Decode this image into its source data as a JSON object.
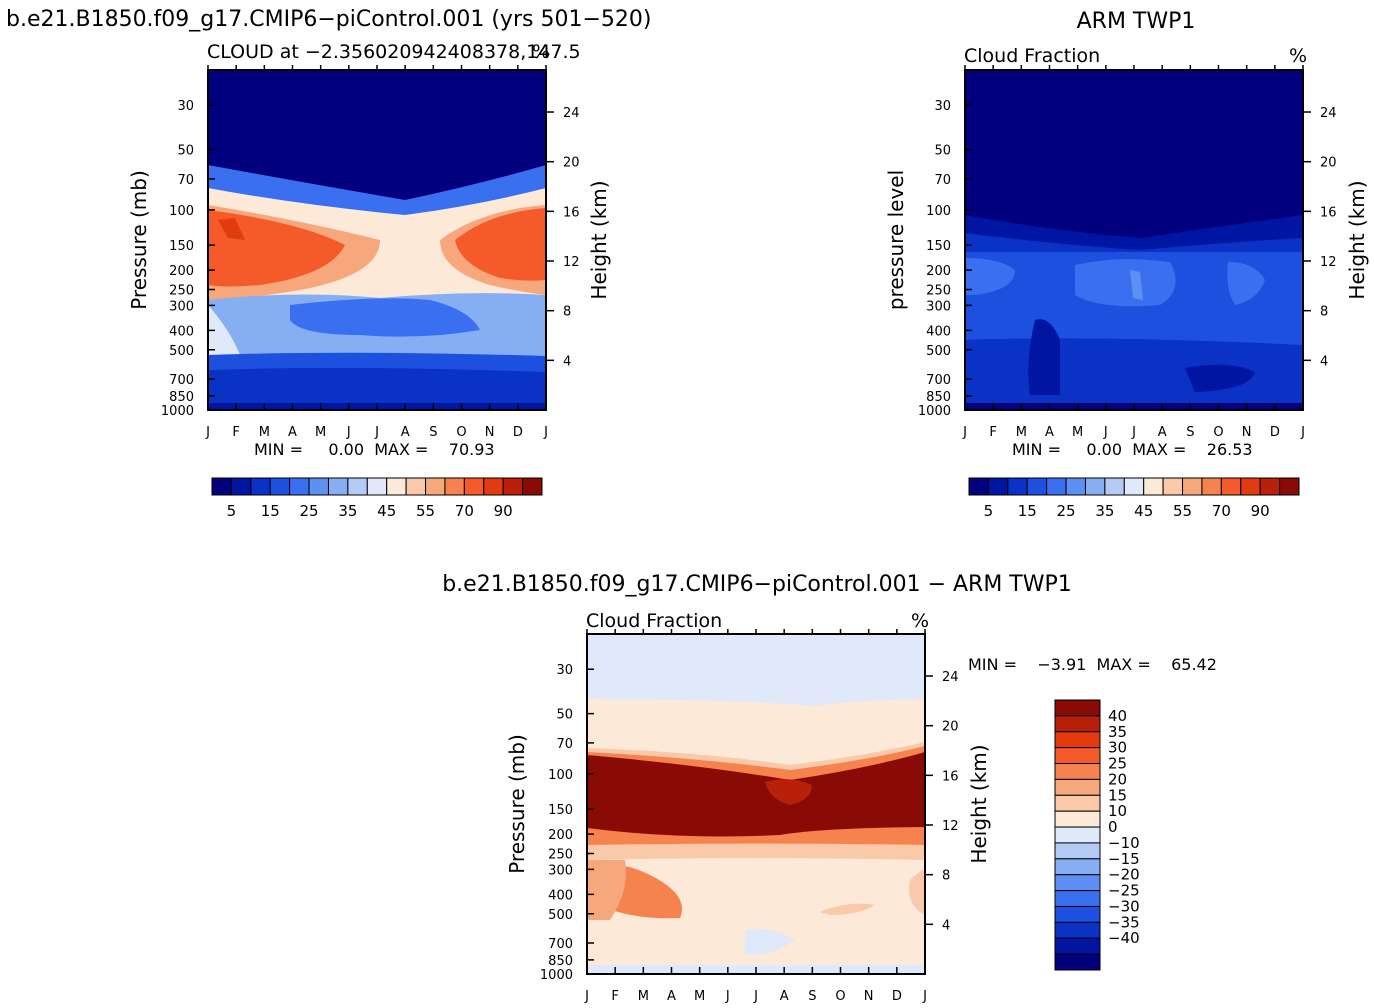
{
  "months": [
    "J",
    "F",
    "M",
    "A",
    "M",
    "J",
    "J",
    "A",
    "S",
    "O",
    "N",
    "D",
    "J"
  ],
  "pressure_levels": [
    30,
    50,
    70,
    100,
    150,
    200,
    250,
    300,
    400,
    500,
    700,
    850,
    1000
  ],
  "height_ticks": [
    24,
    20,
    16,
    12,
    8,
    4
  ],
  "abs_colors": [
    "#02007f",
    "#0015a2",
    "#0a32c4",
    "#1e50e0",
    "#3a70ef",
    "#5e8ff2",
    "#86aef2",
    "#b4ccf5",
    "#dfe9f9",
    "#fde9d7",
    "#f9c9a9",
    "#f6a77c",
    "#f6824e",
    "#f45a2a",
    "#e23b0e",
    "#b8200a",
    "#8a0a05"
  ],
  "abs_labels": [
    "5",
    "15",
    "25",
    "35",
    "45",
    "55",
    "70",
    "90"
  ],
  "diff_colors": [
    "#8a0a05",
    "#b8200a",
    "#e23b0e",
    "#f45a2a",
    "#f6824e",
    "#f6a77c",
    "#f9c9a9",
    "#fde9d7",
    "#dfe9f9",
    "#b4ccf5",
    "#86aef2",
    "#5e8ff2",
    "#3a70ef",
    "#1e50e0",
    "#0a32c4",
    "#0015a2",
    "#02007f"
  ],
  "diff_labels": [
    "40",
    "35",
    "30",
    "25",
    "20",
    "15",
    "10",
    "0",
    "−10",
    "−15",
    "−20",
    "−25",
    "−30",
    "−35",
    "−40"
  ],
  "panel1": {
    "title": "b.e21.B1850.f09_g17.CMIP6−piControl.001 (yrs 501−520)",
    "subtitle": "CLOUD at −2.356020942408378,147.5",
    "unit": "%",
    "ylabel": "Pressure (mb)",
    "ylabel_right": "Height (km)",
    "minmax": "MIN =     0.00  MAX =    70.93"
  },
  "panel2": {
    "title": "ARM TWP1",
    "subtitle": "Cloud Fraction",
    "unit": "%",
    "ylabel": "pressure level",
    "ylabel_right": "Height (km)",
    "minmax": "MIN =     0.00  MAX =    26.53"
  },
  "panel3": {
    "title": "b.e21.B1850.f09_g17.CMIP6−piControl.001 − ARM TWP1",
    "subtitle": "Cloud Fraction",
    "unit": "%",
    "ylabel": "Pressure (mb)",
    "ylabel_right": "Height (km)",
    "minmax": "MIN =    −3.91  MAX =    65.42"
  },
  "chart_data": [
    {
      "type": "heatmap",
      "title": "b.e21.B1850.f09_g17.CMIP6−piControl.001 (yrs 501−520)",
      "subtitle": "CLOUD at −2.356020942408378,147.5",
      "xlabel": "",
      "ylabel": "Pressure (mb)",
      "ylabel_right": "Height (km)",
      "unit": "%",
      "x": [
        "J",
        "F",
        "M",
        "A",
        "M",
        "J",
        "J",
        "A",
        "S",
        "O",
        "N",
        "D",
        "J"
      ],
      "y": [
        30,
        50,
        70,
        100,
        150,
        200,
        250,
        300,
        400,
        500,
        700,
        850,
        1000
      ],
      "y_scale": "log",
      "min": 0.0,
      "max": 70.93,
      "levels": [
        5,
        10,
        15,
        20,
        25,
        30,
        35,
        40,
        45,
        50,
        55,
        60,
        70,
        80,
        90
      ]
    },
    {
      "type": "heatmap",
      "title": "ARM TWP1",
      "subtitle": "Cloud Fraction",
      "xlabel": "",
      "ylabel": "pressure level",
      "ylabel_right": "Height (km)",
      "unit": "%",
      "x": [
        "J",
        "F",
        "M",
        "A",
        "M",
        "J",
        "J",
        "A",
        "S",
        "O",
        "N",
        "D",
        "J"
      ],
      "y": [
        30,
        50,
        70,
        100,
        150,
        200,
        250,
        300,
        400,
        500,
        700,
        850,
        1000
      ],
      "y_scale": "log",
      "min": 0.0,
      "max": 26.53,
      "levels": [
        5,
        10,
        15,
        20,
        25,
        30,
        35,
        40,
        45,
        50,
        55,
        60,
        70,
        80,
        90
      ]
    },
    {
      "type": "heatmap",
      "title": "b.e21.B1850.f09_g17.CMIP6−piControl.001 − ARM TWP1",
      "subtitle": "Cloud Fraction",
      "xlabel": "",
      "ylabel": "Pressure (mb)",
      "ylabel_right": "Height (km)",
      "unit": "%",
      "x": [
        "J",
        "F",
        "M",
        "A",
        "M",
        "J",
        "J",
        "A",
        "S",
        "O",
        "N",
        "D",
        "J"
      ],
      "y": [
        30,
        50,
        70,
        100,
        150,
        200,
        250,
        300,
        400,
        500,
        700,
        850,
        1000
      ],
      "y_scale": "log",
      "min": -3.91,
      "max": 65.42,
      "levels": [
        -40,
        -35,
        -30,
        -25,
        -20,
        -15,
        -10,
        0,
        10,
        15,
        20,
        25,
        30,
        35,
        40
      ]
    }
  ]
}
